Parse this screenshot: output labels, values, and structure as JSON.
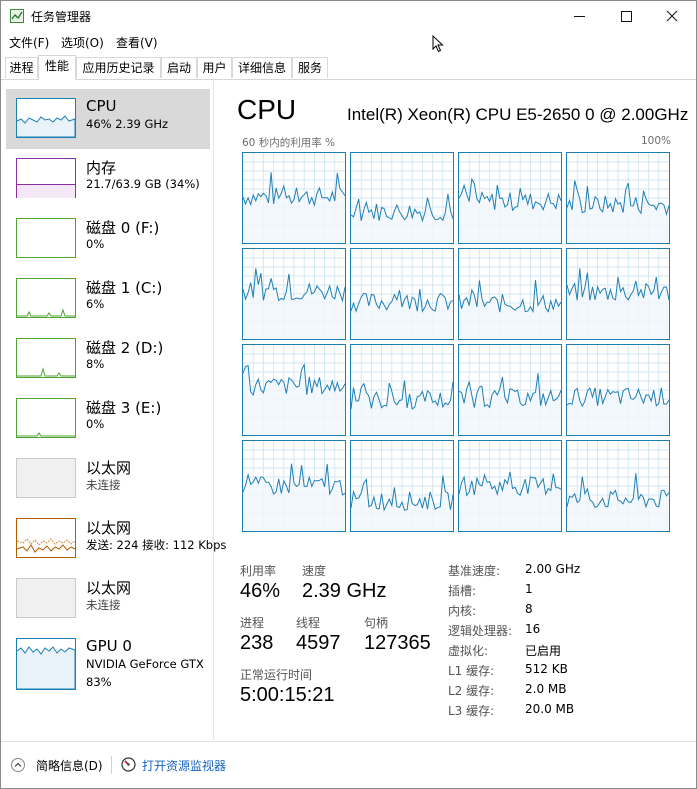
{
  "window": {
    "title": "任务管理器"
  },
  "menu": [
    "文件(F)",
    "选项(O)",
    "查看(V)"
  ],
  "tabs": [
    "进程",
    "性能",
    "应用历史记录",
    "启动",
    "用户",
    "详细信息",
    "服务"
  ],
  "active_tab": "性能",
  "sidebar": {
    "items": [
      {
        "title": "CPU",
        "sub": "46% 2.39 GHz",
        "color": "#1e7fb5"
      },
      {
        "title": "内存",
        "sub": "21.7/63.9 GB (34%)",
        "color": "#8b2fa8"
      },
      {
        "title": "磁盘 0 (F:)",
        "sub": "0%",
        "color": "#4da62f"
      },
      {
        "title": "磁盘 1 (C:)",
        "sub": "6%",
        "color": "#4da62f"
      },
      {
        "title": "磁盘 2 (D:)",
        "sub": "8%",
        "color": "#4da62f"
      },
      {
        "title": "磁盘 3 (E:)",
        "sub": "0%",
        "color": "#4da62f"
      },
      {
        "title": "以太网",
        "sub": "未连接",
        "color": "#bdbdbd"
      },
      {
        "title": "以太网",
        "sub": "发送: 224  接收: 112 Kbps",
        "color": "#b35c00"
      },
      {
        "title": "以太网",
        "sub": "未连接",
        "color": "#bdbdbd"
      },
      {
        "title": "GPU 0",
        "sub": "NVIDIA GeForce GTX",
        "sub2": "83%",
        "color": "#1e7fb5"
      }
    ]
  },
  "main": {
    "title": "CPU",
    "model": "Intel(R) Xeon(R) CPU E5-2650 0 @ 2.00GHz",
    "graph_label_left": "60 秒内的利用率 %",
    "graph_label_right": "100%",
    "core_count": 16,
    "stats": {
      "util_label": "利用率",
      "util_value": "46%",
      "speed_label": "速度",
      "speed_value": "2.39 GHz",
      "proc_label": "进程",
      "proc_value": "238",
      "thread_label": "线程",
      "thread_value": "4597",
      "handle_label": "句柄",
      "handle_value": "127365",
      "uptime_label": "正常运行时间",
      "uptime_value": "5:00:15:21"
    },
    "info": [
      {
        "label": "基准速度:",
        "value": "2.00 GHz"
      },
      {
        "label": "插槽:",
        "value": "1"
      },
      {
        "label": "内核:",
        "value": "8"
      },
      {
        "label": "逻辑处理器:",
        "value": "16"
      },
      {
        "label": "虚拟化:",
        "value": "已启用"
      },
      {
        "label": "L1 缓存:",
        "value": "512 KB"
      },
      {
        "label": "L2 缓存:",
        "value": "2.0 MB"
      },
      {
        "label": "L3 缓存:",
        "value": "20.0 MB"
      }
    ]
  },
  "footer": {
    "summary": "简略信息(D)",
    "monitor": "打开资源监视器"
  },
  "colors": {
    "cpu": "#1e7fb5",
    "grid": "#d3e6f2",
    "fill": "#f1f7fb",
    "selected": "#d9d9d9"
  }
}
